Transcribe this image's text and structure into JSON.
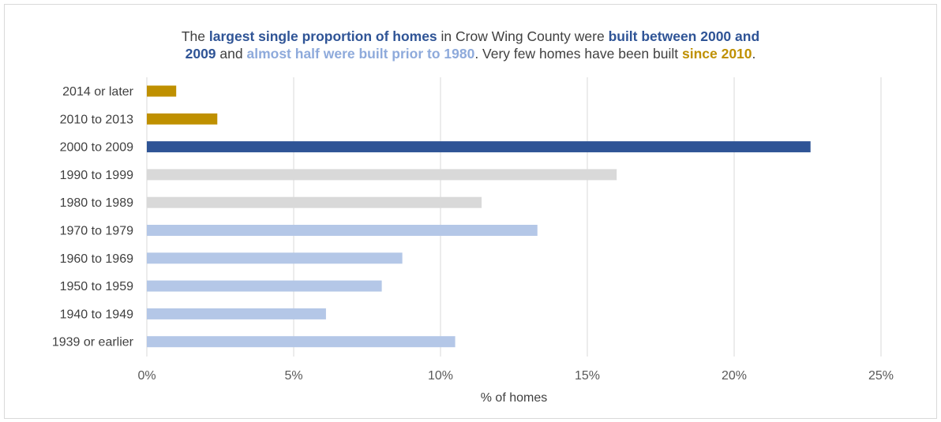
{
  "title": {
    "line1": [
      {
        "text": "The ",
        "style": "plain"
      },
      {
        "text": "largest single proportion of homes",
        "style": "dark"
      },
      {
        "text": " in Crow Wing County were ",
        "style": "plain"
      },
      {
        "text": "built between 2000 and",
        "style": "dark"
      }
    ],
    "line2": [
      {
        "text": "2009",
        "style": "dark"
      },
      {
        "text": " and ",
        "style": "plain"
      },
      {
        "text": "almost half were built prior to 1980",
        "style": "light"
      },
      {
        "text": ". Very few homes have been built ",
        "style": "plain"
      },
      {
        "text": "since 2010",
        "style": "gold"
      },
      {
        "text": ".",
        "style": "plain"
      }
    ]
  },
  "colors": {
    "plain": "#404040",
    "dark": "#2f5496",
    "light": "#8eaadb",
    "gold": "#bf9000",
    "gray_bar": "#d9d9d9",
    "light_bar": "#b4c7e7",
    "gridline": "#d9d9d9"
  },
  "chart_data": {
    "type": "bar",
    "orientation": "horizontal",
    "categories": [
      "2014 or later",
      "2010 to 2013",
      "2000 to 2009",
      "1990 to 1999",
      "1980 to 1989",
      "1970 to 1979",
      "1960 to 1969",
      "1950 to 1959",
      "1940 to 1949",
      "1939 or earlier"
    ],
    "values": [
      1.0,
      2.4,
      22.6,
      16.0,
      11.4,
      13.3,
      8.7,
      8.0,
      6.1,
      10.5
    ],
    "bar_colors": [
      "#bf9000",
      "#bf9000",
      "#2f5496",
      "#d9d9d9",
      "#d9d9d9",
      "#b4c7e7",
      "#b4c7e7",
      "#b4c7e7",
      "#b4c7e7",
      "#b4c7e7"
    ],
    "xlim": [
      0,
      25
    ],
    "xticks": [
      0,
      5,
      10,
      15,
      20,
      25
    ],
    "xtick_labels": [
      "0%",
      "5%",
      "10%",
      "15%",
      "20%",
      "25%"
    ],
    "xlabel": "% of homes",
    "ylabel": "",
    "grid": true
  }
}
